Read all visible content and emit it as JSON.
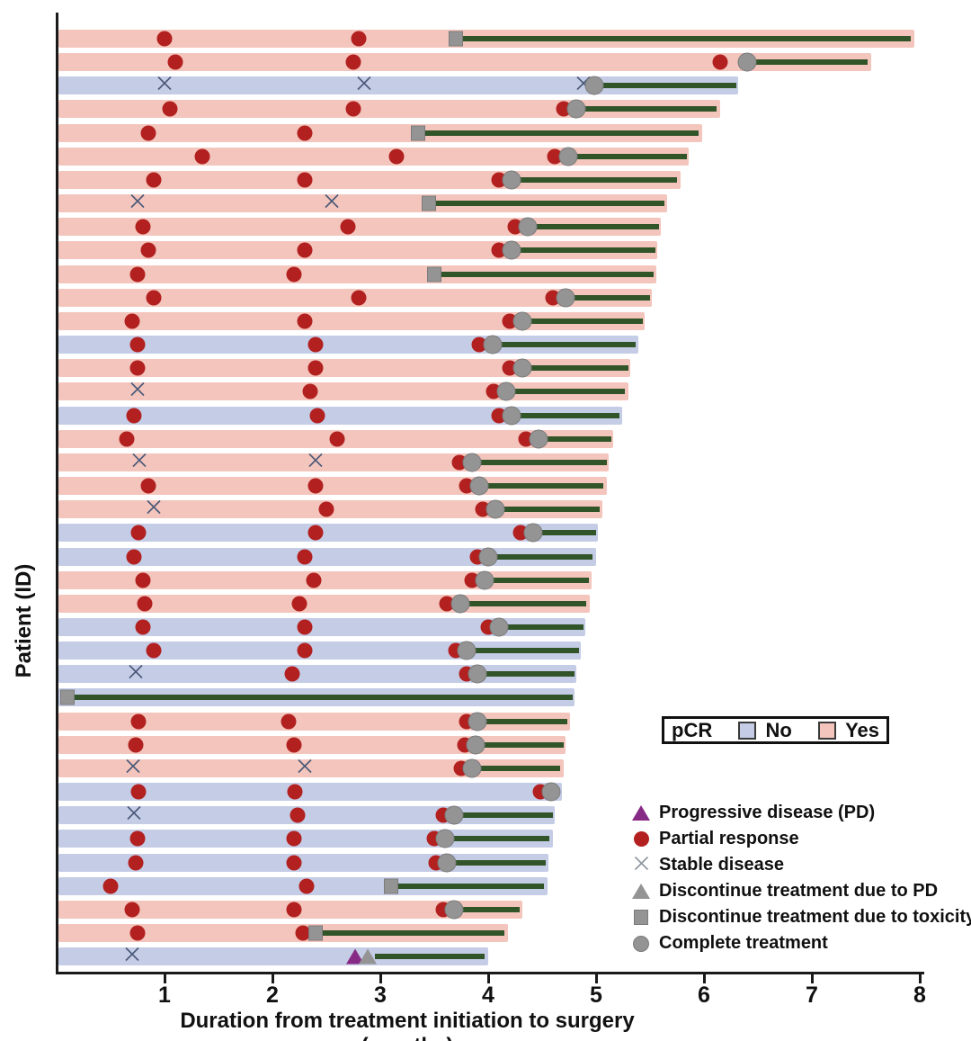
{
  "chart_data": {
    "type": "bar",
    "subtype": "swimmer-plot",
    "title": "",
    "xlabel": "Duration from treatment initiation to surgery (months)",
    "ylabel": "Patient (ID)",
    "xlim": [
      0,
      8
    ],
    "x_ticks": [
      1,
      2,
      3,
      4,
      5,
      6,
      7,
      8
    ],
    "grid": false,
    "pcr_legend": {
      "title": "pCR",
      "items": [
        {
          "label": "No",
          "color": "#c4cce6"
        },
        {
          "label": "Yes",
          "color": "#f3c5bc"
        }
      ]
    },
    "marker_legend": [
      {
        "symbol": "pd",
        "label": "Progressive disease (PD)"
      },
      {
        "symbol": "pr",
        "label": "Partial response"
      },
      {
        "symbol": "sd",
        "label": "Stable disease"
      },
      {
        "symbol": "dc_pd",
        "label": "Discontinue treatment due to PD"
      },
      {
        "symbol": "dc_tox",
        "label": "Discontinue treatment due to toxicity"
      },
      {
        "symbol": "ct",
        "label": "Complete treatment"
      }
    ],
    "colors": {
      "pcr_yes": "#f3c5bc",
      "pcr_no": "#c4cce6",
      "partial_response": "#b2201f",
      "stable_disease": "#4a5878",
      "progressive_disease": "#872a86",
      "discontinue_gray": "#949494",
      "gray_border": "#7b7b7b",
      "treatment_free_line": "#315428",
      "axis": "#1a1a1a"
    },
    "rows": [
      {
        "pcr": "yes",
        "end": 7.95,
        "green": [
          3.7,
          7.92
        ],
        "markers": [
          [
            "pr",
            1.0
          ],
          [
            "pr",
            2.8
          ],
          [
            "dc_tox",
            3.7
          ]
        ]
      },
      {
        "pcr": "yes",
        "end": 7.55,
        "green": [
          6.4,
          7.52
        ],
        "markers": [
          [
            "pr",
            1.1
          ],
          [
            "pr",
            2.75
          ],
          [
            "pr",
            6.15
          ],
          [
            "ct",
            6.4
          ]
        ]
      },
      {
        "pcr": "no",
        "end": 6.32,
        "green": [
          4.98,
          6.3
        ],
        "markers": [
          [
            "sd",
            1.0
          ],
          [
            "sd",
            2.85
          ],
          [
            "sd",
            4.88
          ],
          [
            "ct",
            4.98
          ]
        ]
      },
      {
        "pcr": "yes",
        "end": 6.15,
        "green": [
          4.82,
          6.12
        ],
        "markers": [
          [
            "pr",
            1.05
          ],
          [
            "pr",
            2.75
          ],
          [
            "pr",
            4.7
          ],
          [
            "ct",
            4.82
          ]
        ]
      },
      {
        "pcr": "yes",
        "end": 5.98,
        "green": [
          3.35,
          5.95
        ],
        "markers": [
          [
            "pr",
            0.85
          ],
          [
            "pr",
            2.3
          ],
          [
            "dc_tox",
            3.35
          ]
        ]
      },
      {
        "pcr": "yes",
        "end": 5.86,
        "green": [
          4.74,
          5.84
        ],
        "markers": [
          [
            "pr",
            1.35
          ],
          [
            "pr",
            3.15
          ],
          [
            "pr",
            4.62
          ],
          [
            "ct",
            4.74
          ]
        ]
      },
      {
        "pcr": "yes",
        "end": 5.78,
        "green": [
          4.22,
          5.75
        ],
        "markers": [
          [
            "pr",
            0.9
          ],
          [
            "pr",
            2.3
          ],
          [
            "pr",
            4.1
          ],
          [
            "ct",
            4.22
          ]
        ]
      },
      {
        "pcr": "yes",
        "end": 5.66,
        "green": [
          3.45,
          5.63
        ],
        "markers": [
          [
            "sd",
            0.75
          ],
          [
            "sd",
            2.55
          ],
          [
            "dc_tox",
            3.45
          ]
        ]
      },
      {
        "pcr": "yes",
        "end": 5.6,
        "green": [
          4.37,
          5.58
        ],
        "markers": [
          [
            "pr",
            0.8
          ],
          [
            "pr",
            2.7
          ],
          [
            "pr",
            4.25
          ],
          [
            "ct",
            4.37
          ]
        ]
      },
      {
        "pcr": "yes",
        "end": 5.57,
        "green": [
          4.22,
          5.55
        ],
        "markers": [
          [
            "pr",
            0.85
          ],
          [
            "pr",
            2.3
          ],
          [
            "pr",
            4.1
          ],
          [
            "ct",
            4.22
          ]
        ]
      },
      {
        "pcr": "yes",
        "end": 5.56,
        "green": [
          3.5,
          5.53
        ],
        "markers": [
          [
            "pr",
            0.75
          ],
          [
            "pr",
            2.2
          ],
          [
            "dc_tox",
            3.5
          ]
        ]
      },
      {
        "pcr": "yes",
        "end": 5.52,
        "green": [
          4.72,
          5.5
        ],
        "markers": [
          [
            "pr",
            0.9
          ],
          [
            "pr",
            2.8
          ],
          [
            "pr",
            4.6
          ],
          [
            "ct",
            4.72
          ]
        ]
      },
      {
        "pcr": "yes",
        "end": 5.45,
        "green": [
          4.32,
          5.43
        ],
        "markers": [
          [
            "pr",
            0.7
          ],
          [
            "pr",
            2.3
          ],
          [
            "pr",
            4.2
          ],
          [
            "ct",
            4.32
          ]
        ]
      },
      {
        "pcr": "no",
        "end": 5.39,
        "green": [
          4.04,
          5.37
        ],
        "markers": [
          [
            "pr",
            0.75
          ],
          [
            "pr",
            2.4
          ],
          [
            "pr",
            3.92
          ],
          [
            "ct",
            4.04
          ]
        ]
      },
      {
        "pcr": "yes",
        "end": 5.32,
        "green": [
          4.32,
          5.3
        ],
        "markers": [
          [
            "pr",
            0.75
          ],
          [
            "pr",
            2.4
          ],
          [
            "pr",
            4.2
          ],
          [
            "ct",
            4.32
          ]
        ]
      },
      {
        "pcr": "yes",
        "end": 5.3,
        "green": [
          4.17,
          5.27
        ],
        "markers": [
          [
            "sd",
            0.75
          ],
          [
            "pr",
            2.35
          ],
          [
            "pr",
            4.05
          ],
          [
            "ct",
            4.17
          ]
        ]
      },
      {
        "pcr": "no",
        "end": 5.24,
        "green": [
          4.22,
          5.22
        ],
        "markers": [
          [
            "pr",
            0.72
          ],
          [
            "pr",
            2.42
          ],
          [
            "pr",
            4.1
          ],
          [
            "ct",
            4.22
          ]
        ]
      },
      {
        "pcr": "yes",
        "end": 5.16,
        "green": [
          4.47,
          5.14
        ],
        "markers": [
          [
            "pr",
            0.65
          ],
          [
            "pr",
            2.6
          ],
          [
            "pr",
            4.35
          ],
          [
            "ct",
            4.47
          ]
        ]
      },
      {
        "pcr": "yes",
        "end": 5.12,
        "green": [
          3.85,
          5.1
        ],
        "markers": [
          [
            "sd",
            0.77
          ],
          [
            "sd",
            2.4
          ],
          [
            "pr",
            3.73
          ],
          [
            "ct",
            3.85
          ]
        ]
      },
      {
        "pcr": "yes",
        "end": 5.1,
        "green": [
          3.92,
          5.07
        ],
        "markers": [
          [
            "pr",
            0.85
          ],
          [
            "pr",
            2.4
          ],
          [
            "pr",
            3.8
          ],
          [
            "ct",
            3.92
          ]
        ]
      },
      {
        "pcr": "yes",
        "end": 5.06,
        "green": [
          4.07,
          5.03
        ],
        "markers": [
          [
            "sd",
            0.9
          ],
          [
            "pr",
            2.5
          ],
          [
            "pr",
            3.95
          ],
          [
            "ct",
            4.07
          ]
        ]
      },
      {
        "pcr": "no",
        "end": 5.02,
        "green": [
          4.42,
          5.0
        ],
        "markers": [
          [
            "pr",
            0.76
          ],
          [
            "pr",
            2.4
          ],
          [
            "pr",
            4.3
          ],
          [
            "ct",
            4.42
          ]
        ]
      },
      {
        "pcr": "no",
        "end": 5.0,
        "green": [
          4.0,
          4.97
        ],
        "markers": [
          [
            "pr",
            0.72
          ],
          [
            "pr",
            2.3
          ],
          [
            "pr",
            3.9
          ],
          [
            "ct",
            4.0
          ]
        ]
      },
      {
        "pcr": "yes",
        "end": 4.96,
        "green": [
          3.97,
          4.93
        ],
        "markers": [
          [
            "pr",
            0.8
          ],
          [
            "pr",
            2.38
          ],
          [
            "pr",
            3.85
          ],
          [
            "ct",
            3.97
          ]
        ]
      },
      {
        "pcr": "yes",
        "end": 4.94,
        "green": [
          3.74,
          4.91
        ],
        "markers": [
          [
            "pr",
            0.82
          ],
          [
            "pr",
            2.25
          ],
          [
            "pr",
            3.62
          ],
          [
            "ct",
            3.74
          ]
        ]
      },
      {
        "pcr": "no",
        "end": 4.9,
        "green": [
          4.1,
          4.88
        ],
        "markers": [
          [
            "pr",
            0.8
          ],
          [
            "pr",
            2.3
          ],
          [
            "pr",
            4.0
          ],
          [
            "ct",
            4.1
          ]
        ]
      },
      {
        "pcr": "no",
        "end": 4.86,
        "green": [
          3.8,
          4.84
        ],
        "markers": [
          [
            "pr",
            0.9
          ],
          [
            "pr",
            2.3
          ],
          [
            "pr",
            3.7
          ],
          [
            "ct",
            3.8
          ]
        ]
      },
      {
        "pcr": "no",
        "end": 4.82,
        "green": [
          3.9,
          4.8
        ],
        "markers": [
          [
            "sd",
            0.73
          ],
          [
            "pr",
            2.18
          ],
          [
            "pr",
            3.8
          ],
          [
            "ct",
            3.9
          ]
        ]
      },
      {
        "pcr": "no",
        "end": 4.8,
        "green": [
          0.12,
          4.78
        ],
        "markers": [
          [
            "dc_tox",
            0.1
          ]
        ]
      },
      {
        "pcr": "yes",
        "end": 4.76,
        "green": [
          3.9,
          4.73
        ],
        "markers": [
          [
            "pr",
            0.76
          ],
          [
            "pr",
            2.15
          ],
          [
            "pr",
            3.8
          ],
          [
            "ct",
            3.9
          ]
        ]
      },
      {
        "pcr": "yes",
        "end": 4.72,
        "green": [
          3.88,
          4.7
        ],
        "markers": [
          [
            "pr",
            0.73
          ],
          [
            "pr",
            2.2
          ],
          [
            "pr",
            3.78
          ],
          [
            "ct",
            3.88
          ]
        ]
      },
      {
        "pcr": "yes",
        "end": 4.7,
        "green": [
          3.85,
          4.67
        ],
        "markers": [
          [
            "sd",
            0.71
          ],
          [
            "sd",
            2.3
          ],
          [
            "pr",
            3.75
          ],
          [
            "ct",
            3.85
          ]
        ]
      },
      {
        "pcr": "no",
        "end": 4.68,
        "green": [
          4.58,
          4.66
        ],
        "markers": [
          [
            "pr",
            0.76
          ],
          [
            "pr",
            2.21
          ],
          [
            "pr",
            4.48
          ],
          [
            "ct",
            4.58
          ]
        ]
      },
      {
        "pcr": "no",
        "end": 4.62,
        "green": [
          3.68,
          4.6
        ],
        "markers": [
          [
            "sd",
            0.72
          ],
          [
            "pr",
            2.23
          ],
          [
            "pr",
            3.58
          ],
          [
            "ct",
            3.68
          ]
        ]
      },
      {
        "pcr": "no",
        "end": 4.6,
        "green": [
          3.6,
          4.57
        ],
        "markers": [
          [
            "pr",
            0.75
          ],
          [
            "pr",
            2.2
          ],
          [
            "pr",
            3.5
          ],
          [
            "ct",
            3.6
          ]
        ]
      },
      {
        "pcr": "no",
        "end": 4.56,
        "green": [
          3.62,
          4.53
        ],
        "markers": [
          [
            "pr",
            0.73
          ],
          [
            "pr",
            2.2
          ],
          [
            "pr",
            3.52
          ],
          [
            "ct",
            3.62
          ]
        ]
      },
      {
        "pcr": "no",
        "end": 4.55,
        "green": [
          3.1,
          4.52
        ],
        "markers": [
          [
            "pr",
            0.5
          ],
          [
            "pr",
            2.32
          ],
          [
            "dc_tox",
            3.1
          ]
        ]
      },
      {
        "pcr": "yes",
        "end": 4.32,
        "green": [
          3.68,
          4.29
        ],
        "markers": [
          [
            "pr",
            0.7
          ],
          [
            "pr",
            2.2
          ],
          [
            "pr",
            3.58
          ],
          [
            "ct",
            3.68
          ]
        ]
      },
      {
        "pcr": "yes",
        "end": 4.18,
        "green": [
          2.4,
          4.15
        ],
        "markers": [
          [
            "pr",
            0.75
          ],
          [
            "pr",
            2.28
          ],
          [
            "dc_tox",
            2.4
          ]
        ]
      },
      {
        "pcr": "no",
        "end": 4.0,
        "green": [
          2.95,
          3.97
        ],
        "markers": [
          [
            "sd",
            0.7
          ],
          [
            "pd",
            2.77
          ],
          [
            "dc_pd",
            2.88
          ]
        ]
      }
    ]
  }
}
